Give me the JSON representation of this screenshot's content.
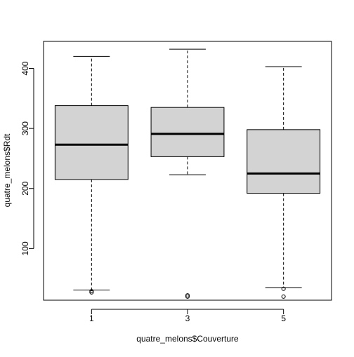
{
  "chart_data": {
    "type": "boxplot",
    "title": "",
    "xlabel": "quatre_melons$Couverture",
    "ylabel": "quatre_melons$Rdt",
    "categories": [
      "1",
      "3",
      "5"
    ],
    "ylim": [
      14,
      445
    ],
    "yticks": [
      100,
      200,
      300,
      400
    ],
    "boxes": [
      {
        "category": "1",
        "whisker_low": 31,
        "q1": 215,
        "median": 273,
        "q3": 338,
        "whisker_high": 420,
        "outliers": [
          27,
          29
        ]
      },
      {
        "category": "3",
        "whisker_low": 223,
        "q1": 253,
        "median": 291,
        "q3": 335,
        "whisker_high": 432,
        "outliers": [
          20,
          22
        ]
      },
      {
        "category": "5",
        "whisker_low": 35,
        "q1": 192,
        "median": 225,
        "q3": 298,
        "whisker_high": 403,
        "outliers": [
          33,
          20
        ]
      }
    ],
    "colors": {
      "box_fill": "#d3d3d3",
      "stroke": "#000000"
    }
  }
}
